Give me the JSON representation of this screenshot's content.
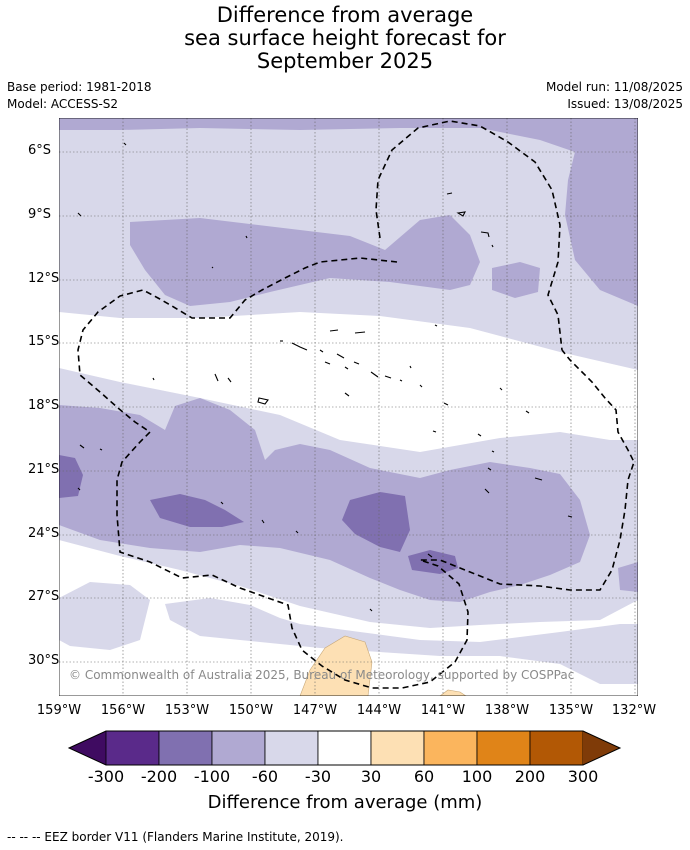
{
  "title": {
    "line1": "Difference from average",
    "line2": "sea surface height forecast for",
    "line3": "September 2025"
  },
  "meta": {
    "base_period": "Base period: 1981-2018",
    "model": "Model: ACCESS-S2",
    "model_run": "Model run: 11/08/2025",
    "issued": "Issued: 13/08/2025"
  },
  "map": {
    "lat_labels": [
      "6°S",
      "9°S",
      "12°S",
      "15°S",
      "18°S",
      "21°S",
      "24°S",
      "27°S",
      "30°S"
    ],
    "lon_labels": [
      "159°W",
      "156°W",
      "153°W",
      "150°W",
      "147°W",
      "144°W",
      "141°W",
      "138°W",
      "135°W",
      "132°W"
    ],
    "copyright": "© Commonwealth of Australia 2025, Bureau of Meteorology, supported by COSPPac"
  },
  "colorbar": {
    "ticks": [
      "-300",
      "-200",
      "-100",
      "-60",
      "-30",
      "30",
      "60",
      "100",
      "200",
      "300"
    ],
    "colors": [
      "#3f0b61",
      "#5a2a8a",
      "#8070b0",
      "#b0a9d2",
      "#d8d8ea",
      "#ffffff",
      "#fde0b4",
      "#fbb55d",
      "#e08418",
      "#b25805",
      "#7f3b08"
    ],
    "label": "Difference from average (mm)"
  },
  "footer": "--  --  -- EEZ border V11 (Flanders Marine Institute, 2019)."
}
